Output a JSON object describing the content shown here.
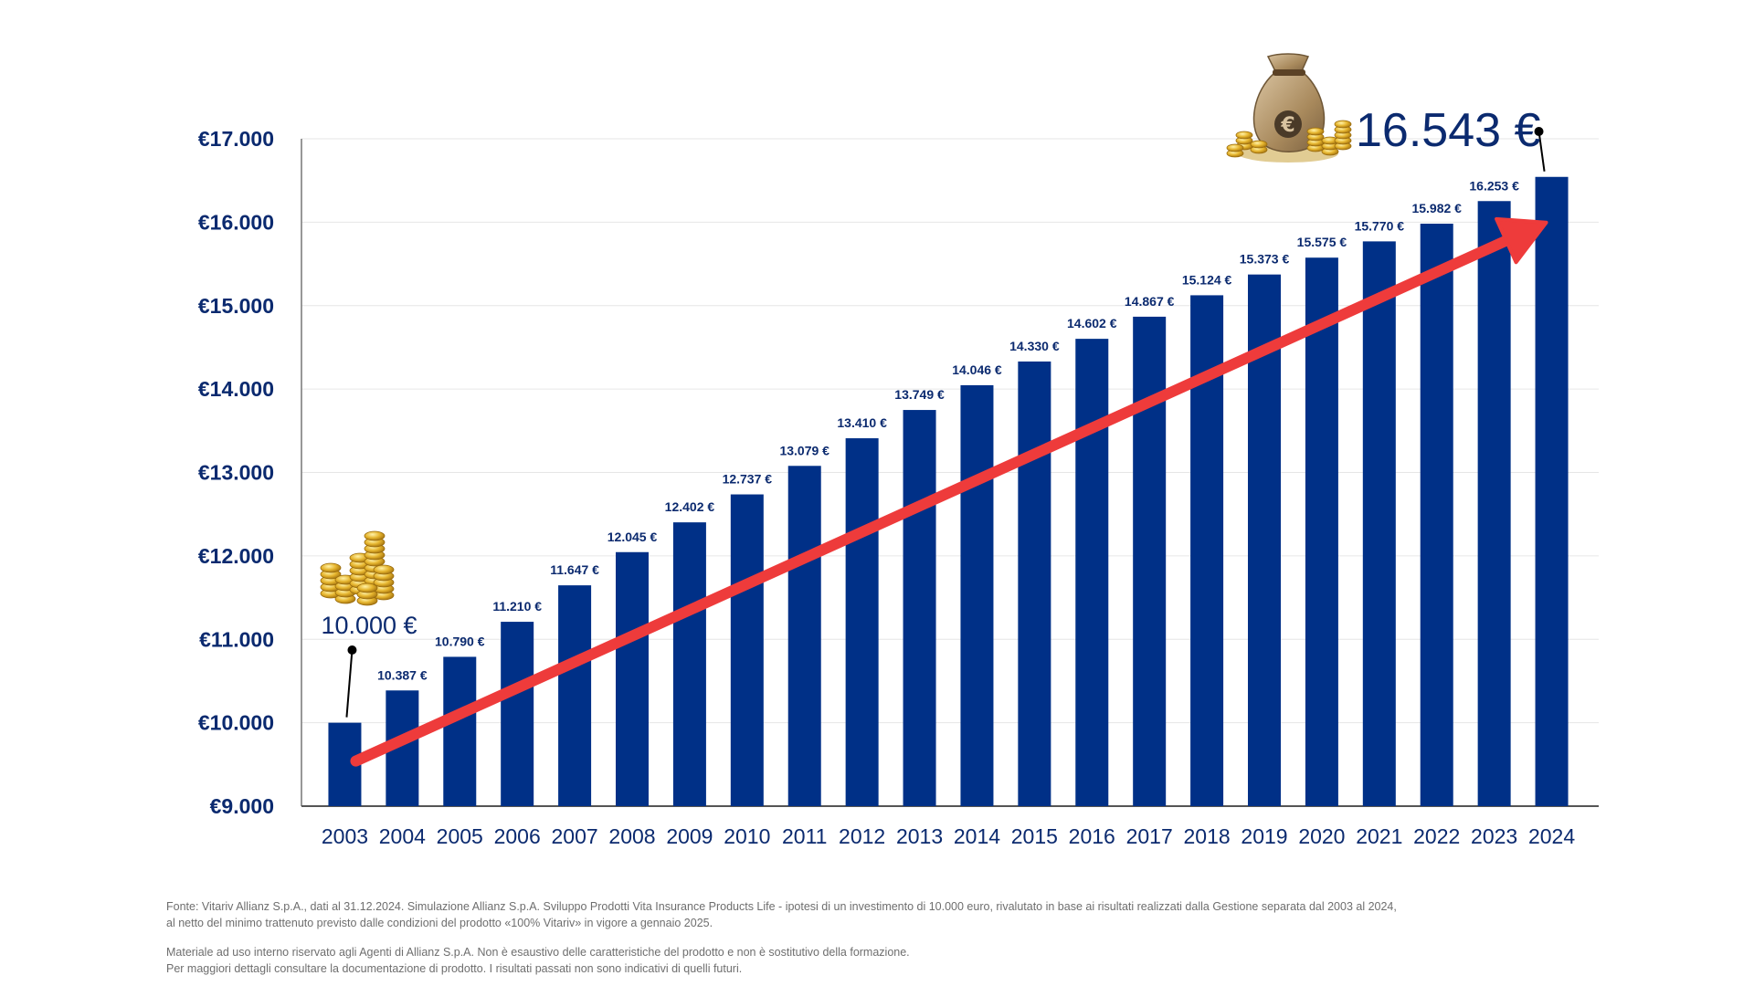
{
  "chart_data": {
    "type": "bar",
    "categories": [
      "2003",
      "2004",
      "2005",
      "2006",
      "2007",
      "2008",
      "2009",
      "2010",
      "2011",
      "2012",
      "2013",
      "2014",
      "2015",
      "2016",
      "2017",
      "2018",
      "2019",
      "2020",
      "2021",
      "2022",
      "2023",
      "2024"
    ],
    "values": [
      10000,
      10387,
      10790,
      11210,
      11647,
      12045,
      12402,
      12737,
      13079,
      13410,
      13749,
      14046,
      14330,
      14602,
      14867,
      15124,
      15373,
      15575,
      15770,
      15982,
      16253,
      16543
    ],
    "data_labels": [
      "",
      "10.387 €",
      "10.790 €",
      "11.210 €",
      "11.647 €",
      "12.045 €",
      "12.402 €",
      "12.737 €",
      "13.079 €",
      "13.410 €",
      "13.749 €",
      "14.046 €",
      "14.330 €",
      "14.602 €",
      "14.867 €",
      "15.124 €",
      "15.373 €",
      "15.575 €",
      "15.770 €",
      "15.982 €",
      "16.253 €",
      ""
    ],
    "ylim": [
      9000,
      17000
    ],
    "yticks": [
      9000,
      10000,
      11000,
      12000,
      13000,
      14000,
      15000,
      16000,
      17000
    ],
    "ytick_labels": [
      "€9.000",
      "€10.000",
      "€11.000",
      "€12.000",
      "€13.000",
      "€14.000",
      "€15.000",
      "€16.000",
      "€17.000"
    ],
    "title": "",
    "xlabel": "",
    "ylabel": "",
    "grid": true,
    "legend": "none",
    "bar_color": "#003087",
    "trend_arrow_color": "#ee3b3b",
    "callouts": {
      "start": "10.000 €",
      "end": "16.543 €"
    }
  },
  "footer": {
    "line1": "Fonte: Vitariv Allianz S.p.A., dati al 31.12.2024.  Simulazione Allianz S.p.A. Sviluppo Prodotti Vita Insurance Products Life - ipotesi di un investimento di 10.000 euro, rivalutato in base ai risultati realizzati dalla Gestione separata dal 2003 al 2024,",
    "line2": "al netto del minimo trattenuto previsto dalle condizioni del prodotto «100% Vitariv» in vigore a gennaio 2025.",
    "line3": "Materiale ad uso interno riservato agli Agenti di Allianz S.p.A. Non è esaustivo delle caratteristiche del prodotto e non è sostitutivo della formazione.",
    "line4": "Per maggiori dettagli consultare la documentazione di prodotto. I risultati passati non sono indicativi di quelli futuri."
  },
  "icons": {
    "start": "gold-coin-stacks-icon",
    "end": "euro-money-bag-icon"
  }
}
